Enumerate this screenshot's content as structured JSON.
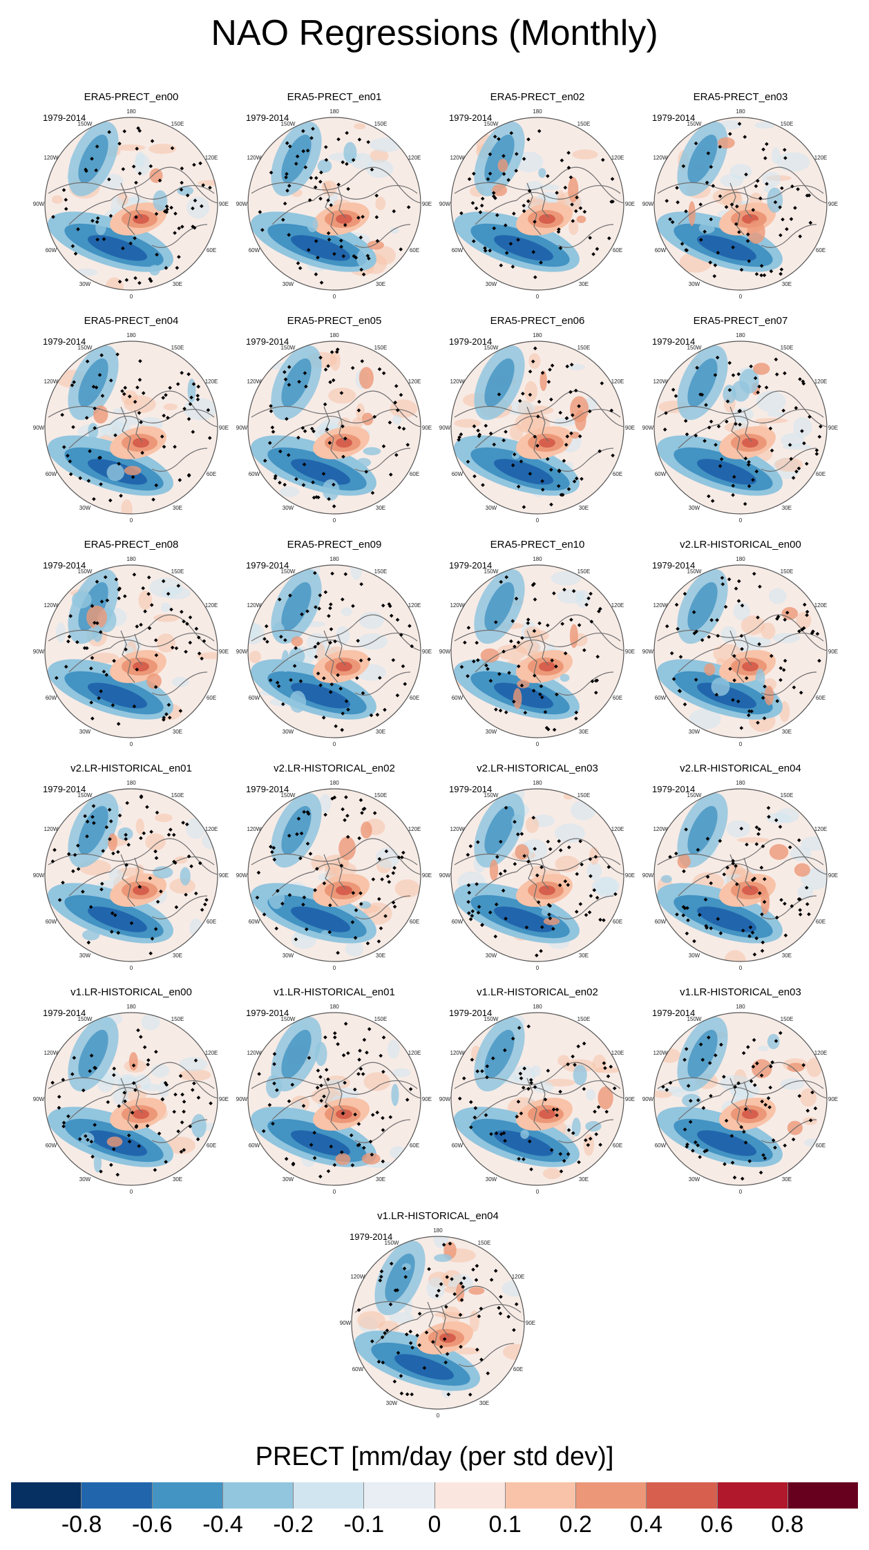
{
  "title": "NAO Regressions (Monthly)",
  "chart_data": {
    "type": "polar-map-panels",
    "variable": "PRECT",
    "units_label": "PRECT [mm/day (per std dev)]",
    "period": "1979-2014",
    "projection": "North polar stereographic",
    "longitude_labels": [
      "180",
      "150E",
      "120E",
      "90E",
      "60E",
      "30E",
      "0",
      "30W",
      "60W",
      "90W",
      "120W",
      "150W"
    ],
    "panels": [
      {
        "name": "ERA5-PRECT_en00",
        "period": "1979-2014"
      },
      {
        "name": "ERA5-PRECT_en01",
        "period": "1979-2014"
      },
      {
        "name": "ERA5-PRECT_en02",
        "period": "1979-2014"
      },
      {
        "name": "ERA5-PRECT_en03",
        "period": "1979-2014"
      },
      {
        "name": "ERA5-PRECT_en04",
        "period": "1979-2014"
      },
      {
        "name": "ERA5-PRECT_en05",
        "period": "1979-2014"
      },
      {
        "name": "ERA5-PRECT_en06",
        "period": "1979-2014"
      },
      {
        "name": "ERA5-PRECT_en07",
        "period": "1979-2014"
      },
      {
        "name": "ERA5-PRECT_en08",
        "period": "1979-2014"
      },
      {
        "name": "ERA5-PRECT_en09",
        "period": "1979-2014"
      },
      {
        "name": "ERA5-PRECT_en10",
        "period": "1979-2014"
      },
      {
        "name": "v2.LR-HISTORICAL_en00",
        "period": "1979-2014"
      },
      {
        "name": "v2.LR-HISTORICAL_en01",
        "period": "1979-2014"
      },
      {
        "name": "v2.LR-HISTORICAL_en02",
        "period": "1979-2014"
      },
      {
        "name": "v2.LR-HISTORICAL_en03",
        "period": "1979-2014"
      },
      {
        "name": "v2.LR-HISTORICAL_en04",
        "period": "1979-2014"
      },
      {
        "name": "v1.LR-HISTORICAL_en00",
        "period": "1979-2014"
      },
      {
        "name": "v1.LR-HISTORICAL_en01",
        "period": "1979-2014"
      },
      {
        "name": "v1.LR-HISTORICAL_en02",
        "period": "1979-2014"
      },
      {
        "name": "v1.LR-HISTORICAL_en03",
        "period": "1979-2014"
      },
      {
        "name": "v1.LR-HISTORICAL_en04",
        "period": "1979-2014"
      }
    ],
    "colorbar": {
      "title": "PRECT [mm/day (per std dev)]",
      "levels": [
        "-0.8",
        "-0.6",
        "-0.4",
        "-0.2",
        "-0.1",
        "0",
        "0.1",
        "0.2",
        "0.4",
        "0.6",
        "0.8"
      ],
      "colors": [
        "#053061",
        "#2166ac",
        "#4393c3",
        "#92c5de",
        "#d1e5f0",
        "#e8eef4",
        "#fbe6df",
        "#f8c3a8",
        "#ec9878",
        "#d6604d",
        "#b2182b",
        "#67001f"
      ]
    }
  }
}
